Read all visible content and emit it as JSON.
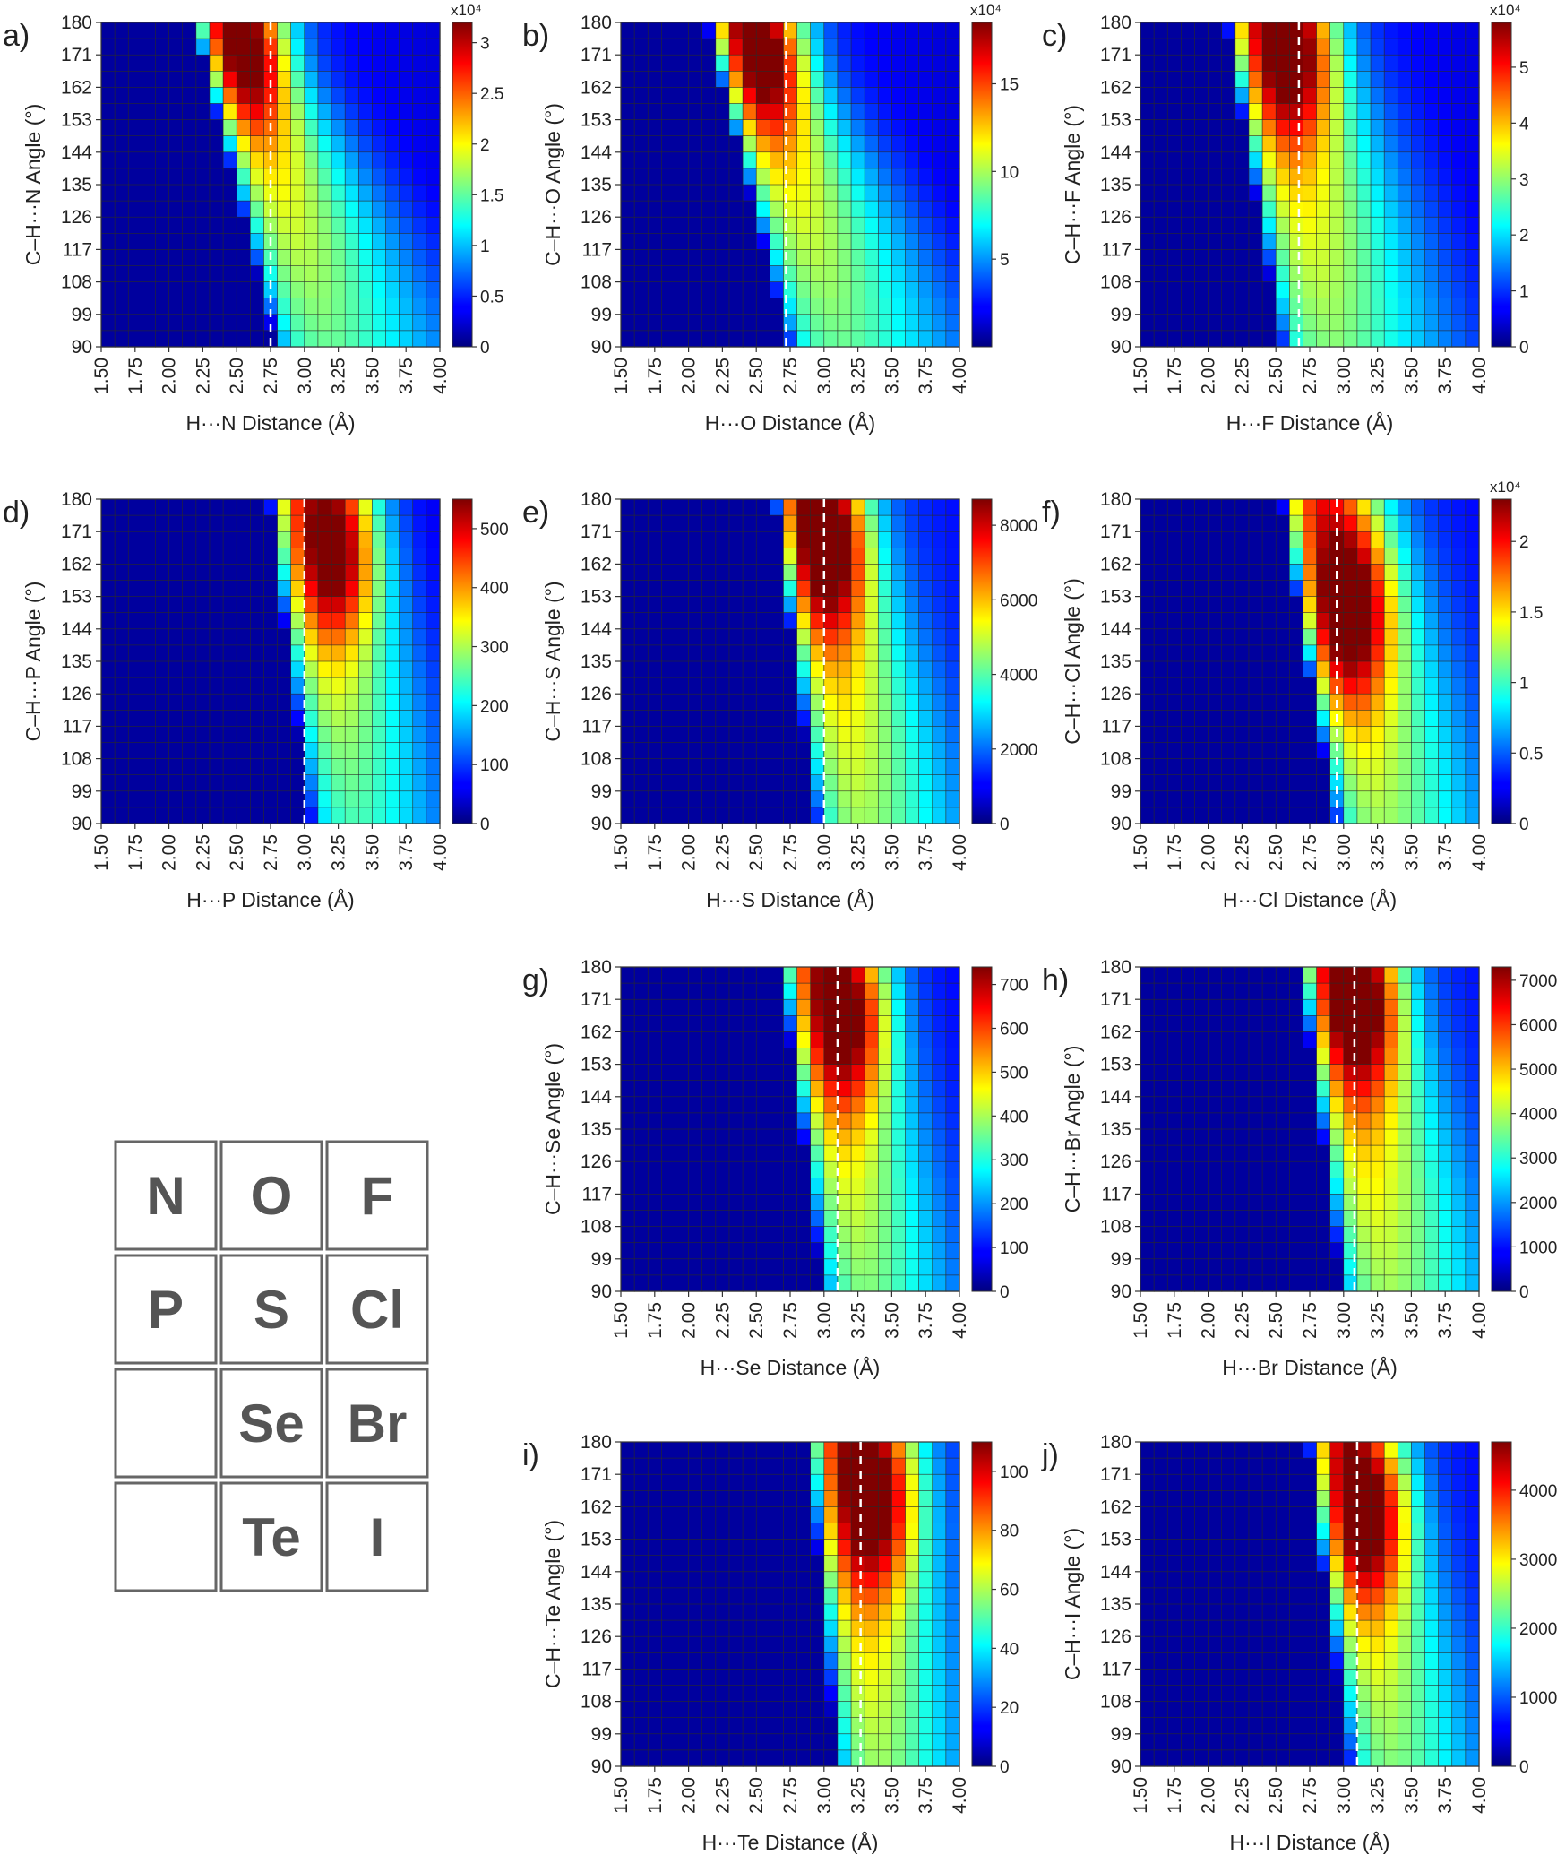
{
  "chart_data": [
    {
      "type": "heatmap",
      "panel_label": "a)",
      "xlabel": "H···N Distance (Å)",
      "ylabel": "C–H···N Angle (°)",
      "xlim": [
        1.5,
        4.0
      ],
      "ylim": [
        90,
        180
      ],
      "x_ticks": [
        "1.50",
        "1.75",
        "2.00",
        "2.25",
        "2.50",
        "2.75",
        "3.00",
        "3.25",
        "3.50",
        "3.75",
        "4.00"
      ],
      "y_ticks": [
        "180",
        "171",
        "162",
        "153",
        "144",
        "135",
        "126",
        "117",
        "108",
        "99",
        "90"
      ],
      "colorbar_ticks": [
        "0",
        "0.5",
        "1",
        "1.5",
        "2",
        "2.5",
        "3"
      ],
      "colorbar_multiplier": "x10⁴",
      "colorbar_max": 3.2,
      "dashed_line_x": 2.75,
      "peak": {
        "x": 2.62,
        "y": 178,
        "value": 3.2
      },
      "onset_distance": 2.3,
      "onset_shift": 0.6,
      "width_top": 0.3,
      "width_bottom": 0.95,
      "tail_level": 0.35
    },
    {
      "type": "heatmap",
      "panel_label": "b)",
      "xlabel": "H···O Distance (Å)",
      "ylabel": "C–H···O Angle (°)",
      "xlim": [
        1.5,
        4.0
      ],
      "ylim": [
        90,
        180
      ],
      "x_ticks": [
        "1.50",
        "1.75",
        "2.00",
        "2.25",
        "2.50",
        "2.75",
        "3.00",
        "3.25",
        "3.50",
        "3.75",
        "4.00"
      ],
      "y_ticks": [
        "180",
        "171",
        "162",
        "153",
        "144",
        "135",
        "126",
        "117",
        "108",
        "99",
        "90"
      ],
      "colorbar_ticks": [
        "5",
        "10",
        "15"
      ],
      "colorbar_multiplier": "x10⁴",
      "colorbar_max": 18.5,
      "dashed_line_x": 2.72,
      "peak": {
        "x": 2.6,
        "y": 176,
        "value": 18.5
      },
      "onset_distance": 2.25,
      "onset_shift": 0.6,
      "width_top": 0.32,
      "width_bottom": 0.95,
      "tail_level": 0.35
    },
    {
      "type": "heatmap",
      "panel_label": "c)",
      "xlabel": "H···F Distance (Å)",
      "ylabel": "C–H···F Angle (°)",
      "xlim": [
        1.5,
        4.0
      ],
      "ylim": [
        90,
        180
      ],
      "x_ticks": [
        "1.50",
        "1.75",
        "2.00",
        "2.25",
        "2.50",
        "2.75",
        "3.00",
        "3.25",
        "3.50",
        "3.75",
        "4.00"
      ],
      "y_ticks": [
        "180",
        "171",
        "162",
        "153",
        "144",
        "135",
        "126",
        "117",
        "108",
        "99",
        "90"
      ],
      "colorbar_ticks": [
        "0",
        "1",
        "2",
        "3",
        "4",
        "5"
      ],
      "colorbar_multiplier": "x10⁴",
      "colorbar_max": 5.8,
      "dashed_line_x": 2.67,
      "peak": {
        "x": 2.65,
        "y": 175,
        "value": 5.8
      },
      "onset_distance": 2.25,
      "onset_shift": 0.4,
      "width_top": 0.45,
      "width_bottom": 0.9,
      "tail_level": 0.4
    },
    {
      "type": "heatmap",
      "panel_label": "d)",
      "xlabel": "H···P Distance (Å)",
      "ylabel": "C–H···P Angle (°)",
      "xlim": [
        1.5,
        4.0
      ],
      "ylim": [
        90,
        180
      ],
      "x_ticks": [
        "1.50",
        "1.75",
        "2.00",
        "2.25",
        "2.50",
        "2.75",
        "3.00",
        "3.25",
        "3.50",
        "3.75",
        "4.00"
      ],
      "y_ticks": [
        "180",
        "171",
        "162",
        "153",
        "144",
        "135",
        "126",
        "117",
        "108",
        "99",
        "90"
      ],
      "colorbar_ticks": [
        "0",
        "100",
        "200",
        "300",
        "400",
        "500"
      ],
      "colorbar_multiplier": "",
      "colorbar_max": 550,
      "dashed_line_x": 3.0,
      "peak": {
        "x": 3.25,
        "y": 167,
        "value": 550
      },
      "onset_distance": 2.85,
      "onset_shift": 0.3,
      "width_top": 0.45,
      "width_bottom": 0.7,
      "tail_level": 0.3
    },
    {
      "type": "heatmap",
      "panel_label": "e)",
      "xlabel": "H···S Distance (Å)",
      "ylabel": "C–H···S Angle (°)",
      "xlim": [
        1.5,
        4.0
      ],
      "ylim": [
        90,
        180
      ],
      "x_ticks": [
        "1.50",
        "1.75",
        "2.00",
        "2.25",
        "2.50",
        "2.75",
        "3.00",
        "3.25",
        "3.50",
        "3.75",
        "4.00"
      ],
      "y_ticks": [
        "180",
        "171",
        "162",
        "153",
        "144",
        "135",
        "126",
        "117",
        "108",
        "99",
        "90"
      ],
      "colorbar_ticks": [
        "0",
        "2000",
        "4000",
        "6000",
        "8000"
      ],
      "colorbar_multiplier": "",
      "colorbar_max": 8700,
      "dashed_line_x": 3.0,
      "peak": {
        "x": 3.05,
        "y": 170,
        "value": 8700
      },
      "onset_distance": 2.75,
      "onset_shift": 0.3,
      "width_top": 0.35,
      "width_bottom": 0.75,
      "tail_level": 0.45
    },
    {
      "type": "heatmap",
      "panel_label": "f)",
      "xlabel": "H···Cl Distance (Å)",
      "ylabel": "C–H···Cl Angle (°)",
      "xlim": [
        1.5,
        4.0
      ],
      "ylim": [
        90,
        180
      ],
      "x_ticks": [
        "1.50",
        "1.75",
        "2.00",
        "2.25",
        "2.50",
        "2.75",
        "3.00",
        "3.25",
        "3.50",
        "3.75",
        "4.00"
      ],
      "y_ticks": [
        "180",
        "171",
        "162",
        "153",
        "144",
        "135",
        "126",
        "117",
        "108",
        "99",
        "90"
      ],
      "colorbar_ticks": [
        "0",
        "0.5",
        "1",
        "1.5",
        "2"
      ],
      "colorbar_multiplier": "x10⁴",
      "colorbar_max": 2.3,
      "dashed_line_x": 2.95,
      "peak": {
        "x": 3.05,
        "y": 150,
        "value": 2.3
      },
      "onset_distance": 2.65,
      "onset_shift": 0.4,
      "width_top": 0.45,
      "width_bottom": 0.75,
      "tail_level": 0.45
    },
    {
      "type": "heatmap",
      "panel_label": "g)",
      "xlabel": "H···Se Distance (Å)",
      "ylabel": "C–H···Se Angle (°)",
      "xlim": [
        1.5,
        4.0
      ],
      "ylim": [
        90,
        180
      ],
      "x_ticks": [
        "1.50",
        "1.75",
        "2.00",
        "2.25",
        "2.50",
        "2.75",
        "3.00",
        "3.25",
        "3.50",
        "3.75",
        "4.00"
      ],
      "y_ticks": [
        "180",
        "171",
        "162",
        "153",
        "144",
        "135",
        "126",
        "117",
        "108",
        "99",
        "90"
      ],
      "colorbar_ticks": [
        "0",
        "100",
        "200",
        "300",
        "400",
        "500",
        "600",
        "700"
      ],
      "colorbar_multiplier": "",
      "colorbar_max": 740,
      "dashed_line_x": 3.1,
      "peak": {
        "x": 3.2,
        "y": 168,
        "value": 740
      },
      "onset_distance": 2.8,
      "onset_shift": 0.3,
      "width_top": 0.4,
      "width_bottom": 0.65,
      "tail_level": 0.4
    },
    {
      "type": "heatmap",
      "panel_label": "h)",
      "xlabel": "H···Br Distance (Å)",
      "ylabel": "C–H···Br Angle (°)",
      "xlim": [
        1.5,
        4.0
      ],
      "ylim": [
        90,
        180
      ],
      "x_ticks": [
        "1.50",
        "1.75",
        "2.00",
        "2.25",
        "2.50",
        "2.75",
        "3.00",
        "3.25",
        "3.50",
        "3.75",
        "4.00"
      ],
      "y_ticks": [
        "180",
        "171",
        "162",
        "153",
        "144",
        "135",
        "126",
        "117",
        "108",
        "99",
        "90"
      ],
      "colorbar_ticks": [
        "0",
        "1000",
        "2000",
        "3000",
        "4000",
        "5000",
        "6000",
        "7000"
      ],
      "colorbar_multiplier": "",
      "colorbar_max": 7300,
      "dashed_line_x": 3.08,
      "peak": {
        "x": 3.15,
        "y": 172,
        "value": 7300
      },
      "onset_distance": 2.8,
      "onset_shift": 0.3,
      "width_top": 0.4,
      "width_bottom": 0.75,
      "tail_level": 0.45
    },
    {
      "type": "heatmap",
      "panel_label": "i)",
      "xlabel": "H···Te Distance (Å)",
      "ylabel": "C–H···Te Angle (°)",
      "xlim": [
        1.5,
        4.0
      ],
      "ylim": [
        90,
        180
      ],
      "x_ticks": [
        "1.50",
        "1.75",
        "2.00",
        "2.25",
        "2.50",
        "2.75",
        "3.00",
        "3.25",
        "3.50",
        "3.75",
        "4.00"
      ],
      "y_ticks": [
        "180",
        "171",
        "162",
        "153",
        "144",
        "135",
        "126",
        "117",
        "108",
        "99",
        "90"
      ],
      "colorbar_ticks": [
        "0",
        "20",
        "40",
        "60",
        "80",
        "100"
      ],
      "colorbar_multiplier": "",
      "colorbar_max": 110,
      "dashed_line_x": 3.27,
      "peak": {
        "x": 3.4,
        "y": 165,
        "value": 110
      },
      "onset_distance": 3.0,
      "onset_shift": 0.2,
      "width_top": 0.45,
      "width_bottom": 0.6,
      "tail_level": 0.45
    },
    {
      "type": "heatmap",
      "panel_label": "j)",
      "xlabel": "H···I Distance (Å)",
      "ylabel": "C–H···I Angle (°)",
      "xlim": [
        1.5,
        4.0
      ],
      "ylim": [
        90,
        180
      ],
      "x_ticks": [
        "1.50",
        "1.75",
        "2.00",
        "2.25",
        "2.50",
        "2.75",
        "3.00",
        "3.25",
        "3.50",
        "3.75",
        "4.00"
      ],
      "y_ticks": [
        "180",
        "171",
        "162",
        "153",
        "144",
        "135",
        "126",
        "117",
        "108",
        "99",
        "90"
      ],
      "colorbar_ticks": [
        "0",
        "1000",
        "2000",
        "3000",
        "4000"
      ],
      "colorbar_multiplier": "",
      "colorbar_max": 4700,
      "dashed_line_x": 3.1,
      "peak": {
        "x": 3.2,
        "y": 162,
        "value": 4700
      },
      "onset_distance": 2.85,
      "onset_shift": 0.3,
      "width_top": 0.35,
      "width_bottom": 0.65,
      "tail_level": 0.4
    }
  ],
  "element_key": [
    "N",
    "O",
    "F",
    "P",
    "S",
    "Cl",
    "",
    "Se",
    "Br",
    "",
    "Te",
    "I"
  ],
  "colors": {
    "border": "#666666",
    "element_text": "#555555",
    "dashed": "#ffffff"
  }
}
